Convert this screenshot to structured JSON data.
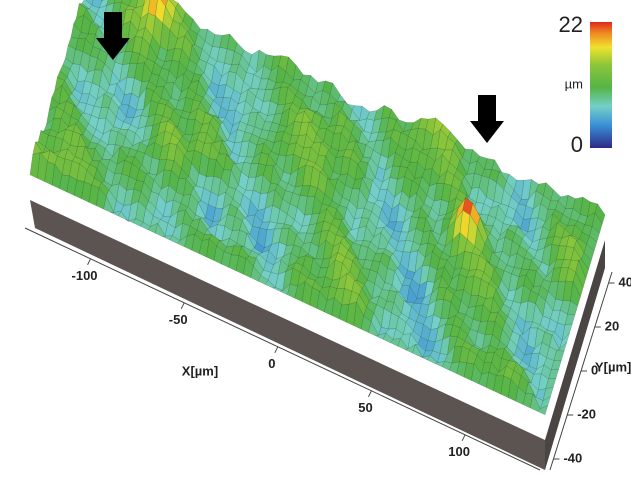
{
  "chart_data": {
    "type": "surface",
    "xlabel": "X[µm]",
    "ylabel": "Y[µm]",
    "xlim": [
      -135,
      140
    ],
    "xticks": [
      -100,
      -50,
      0,
      50,
      100
    ],
    "ylim": [
      -45,
      45
    ],
    "yticks": [
      -40,
      -20,
      0,
      20,
      40
    ],
    "colorbar": {
      "label": "µm",
      "lim": [
        0,
        22
      ],
      "ticks": [
        0,
        22
      ]
    }
  }
}
